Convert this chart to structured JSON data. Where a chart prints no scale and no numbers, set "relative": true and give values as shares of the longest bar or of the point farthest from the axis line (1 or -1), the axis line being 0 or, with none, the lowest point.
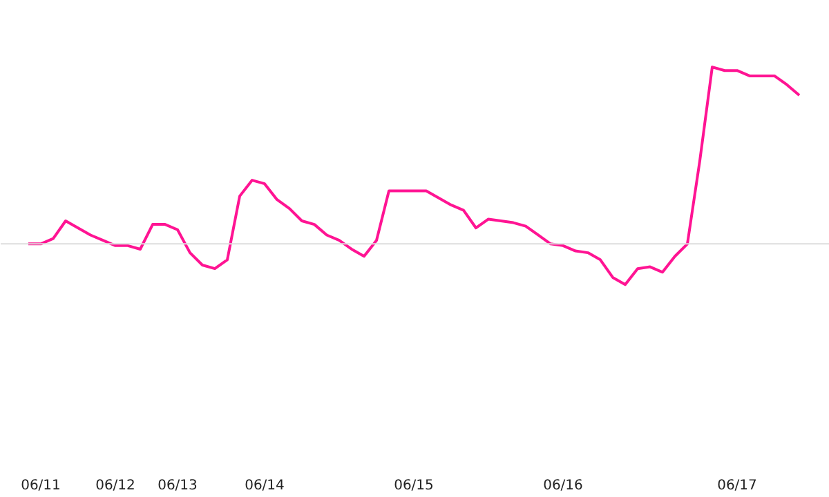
{
  "chart_data": {
    "type": "line",
    "relative": true,
    "grid": false,
    "marker": "none",
    "line_style": "solid",
    "categories": [
      null,
      "06/11",
      null,
      null,
      null,
      null,
      null,
      "06/12",
      null,
      null,
      null,
      null,
      "06/13",
      null,
      null,
      null,
      null,
      null,
      null,
      "06/14",
      null,
      null,
      null,
      null,
      null,
      null,
      null,
      null,
      null,
      null,
      null,
      "06/15",
      null,
      null,
      null,
      null,
      null,
      null,
      null,
      null,
      null,
      null,
      null,
      "06/16",
      null,
      null,
      null,
      null,
      null,
      null,
      null,
      null,
      null,
      null,
      null,
      null,
      null,
      "06/17",
      null,
      null,
      null,
      null,
      null
    ],
    "series": [
      {
        "color": "#ff1493",
        "values": [
          0,
          0,
          0.03,
          0.13,
          0.09,
          0.05,
          0.02,
          -0.01,
          -0.01,
          -0.03,
          0.11,
          0.11,
          0.08,
          -0.05,
          -0.12,
          -0.14,
          -0.09,
          0.27,
          0.36,
          0.34,
          0.25,
          0.2,
          0.13,
          0.11,
          0.05,
          0.02,
          -0.03,
          -0.07,
          0.02,
          0.3,
          0.3,
          0.3,
          0.3,
          0.26,
          0.22,
          0.19,
          0.09,
          0.14,
          0.13,
          0.12,
          0.1,
          0.05,
          0,
          -0.01,
          -0.04,
          -0.05,
          -0.09,
          -0.19,
          -0.23,
          -0.14,
          -0.13,
          -0.16,
          -0.07,
          0,
          0.47,
          1.0,
          0.98,
          0.98,
          0.95,
          0.95,
          0.95,
          0.9,
          0.84
        ]
      }
    ]
  }
}
